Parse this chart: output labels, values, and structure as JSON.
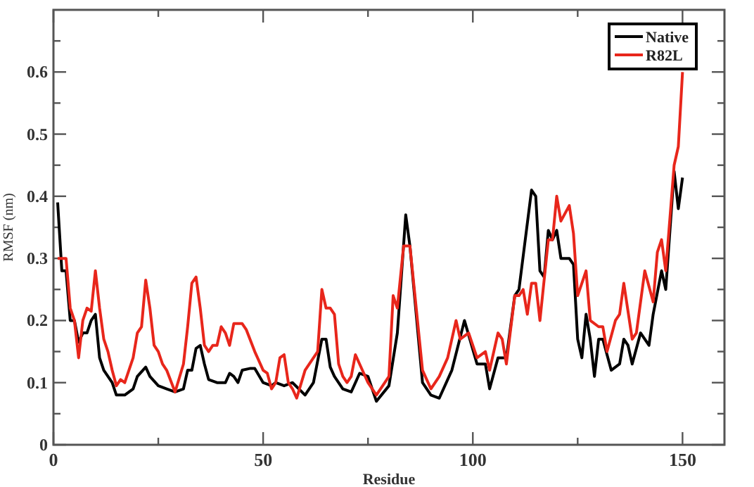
{
  "chart_data": {
    "type": "line",
    "xlabel": "Residue",
    "ylabel": "RMSF (nm)",
    "xlim": [
      0,
      160
    ],
    "ylim": [
      0,
      0.7
    ],
    "xticks": [
      0,
      {
        "value": 25,
        "label": null
      },
      50,
      {
        "value": 75,
        "label": null
      },
      100,
      {
        "value": 125,
        "label": null
      },
      150
    ],
    "yticks": [
      0,
      {
        "value": 0.05,
        "label": null
      },
      0.1,
      {
        "value": 0.15,
        "label": null
      },
      0.2,
      {
        "value": 0.25,
        "label": null
      },
      0.3,
      {
        "value": 0.35,
        "label": null
      },
      0.4,
      {
        "value": 0.45,
        "label": null
      },
      0.5,
      {
        "value": 0.55,
        "label": null
      },
      0.6,
      {
        "value": 0.65,
        "label": null
      }
    ],
    "grid": false,
    "legend": "top right",
    "marker": "none",
    "line_style": "solid",
    "series": [
      {
        "name": "Native",
        "color": "#000000",
        "x": [
          1,
          2,
          3,
          4,
          5,
          6,
          7,
          8,
          9,
          10,
          11,
          12,
          14,
          15,
          17,
          19,
          20,
          22,
          23,
          25,
          27,
          29,
          31,
          32,
          33,
          34,
          35,
          36,
          37,
          39,
          41,
          42,
          43,
          44,
          45,
          47,
          48,
          50,
          52,
          53,
          55,
          57,
          60,
          62,
          64,
          65,
          66,
          67,
          69,
          71,
          73,
          75,
          76,
          77,
          80,
          82,
          84,
          85,
          88,
          90,
          92,
          95,
          98,
          101,
          103,
          104,
          106,
          108,
          110,
          111,
          114,
          115,
          116,
          117,
          118,
          119,
          120,
          121,
          123,
          124,
          125,
          126,
          127,
          128,
          129,
          130,
          131,
          133,
          135,
          136,
          137,
          138,
          140,
          142,
          143,
          145,
          146,
          148,
          149,
          150
        ],
        "values": [
          0.39,
          0.28,
          0.28,
          0.2,
          0.2,
          0.165,
          0.18,
          0.18,
          0.2,
          0.21,
          0.14,
          0.12,
          0.1,
          0.08,
          0.08,
          0.09,
          0.11,
          0.125,
          0.11,
          0.095,
          0.09,
          0.085,
          0.09,
          0.12,
          0.12,
          0.155,
          0.16,
          0.13,
          0.105,
          0.1,
          0.1,
          0.115,
          0.11,
          0.1,
          0.12,
          0.123,
          0.123,
          0.1,
          0.095,
          0.1,
          0.095,
          0.1,
          0.08,
          0.1,
          0.17,
          0.17,
          0.125,
          0.11,
          0.09,
          0.085,
          0.115,
          0.11,
          0.09,
          0.07,
          0.095,
          0.18,
          0.37,
          0.32,
          0.1,
          0.08,
          0.075,
          0.12,
          0.2,
          0.13,
          0.13,
          0.09,
          0.14,
          0.14,
          0.24,
          0.25,
          0.41,
          0.4,
          0.28,
          0.27,
          0.345,
          0.33,
          0.345,
          0.3,
          0.3,
          0.29,
          0.17,
          0.14,
          0.21,
          0.17,
          0.11,
          0.17,
          0.17,
          0.12,
          0.13,
          0.17,
          0.16,
          0.13,
          0.18,
          0.16,
          0.21,
          0.28,
          0.25,
          0.44,
          0.38,
          0.43
        ]
      },
      {
        "name": "R82L",
        "color": "#e8261b",
        "x": [
          1,
          2,
          3,
          4,
          5,
          6,
          7,
          8,
          9,
          10,
          11,
          12,
          13,
          14,
          15,
          16,
          17,
          19,
          20,
          21,
          22,
          23,
          24,
          25,
          26,
          27,
          29,
          31,
          32,
          33,
          34,
          35,
          36,
          37,
          38,
          39,
          40,
          41,
          42,
          43,
          45,
          46,
          48,
          50,
          51,
          52,
          53,
          54,
          55,
          56,
          57,
          58,
          60,
          62,
          63,
          64,
          65,
          66,
          67,
          68,
          69,
          70,
          71,
          72,
          73,
          75,
          77,
          80,
          81,
          82,
          83.5,
          85,
          88,
          90,
          92,
          94,
          96,
          97,
          99,
          101,
          103,
          104,
          106,
          107,
          108,
          110,
          111,
          112,
          113,
          114,
          115,
          116,
          118,
          119,
          120,
          121,
          123,
          124,
          125,
          127,
          128,
          130,
          131,
          132,
          134,
          135,
          136,
          138,
          139,
          141,
          143,
          144,
          145,
          146,
          148,
          149,
          150
        ],
        "values": [
          0.3,
          0.3,
          0.3,
          0.22,
          0.2,
          0.14,
          0.2,
          0.22,
          0.215,
          0.28,
          0.22,
          0.17,
          0.15,
          0.12,
          0.095,
          0.105,
          0.1,
          0.14,
          0.18,
          0.19,
          0.265,
          0.22,
          0.16,
          0.15,
          0.13,
          0.12,
          0.085,
          0.13,
          0.19,
          0.26,
          0.27,
          0.22,
          0.16,
          0.15,
          0.16,
          0.16,
          0.19,
          0.18,
          0.16,
          0.195,
          0.195,
          0.185,
          0.15,
          0.12,
          0.115,
          0.09,
          0.1,
          0.14,
          0.145,
          0.1,
          0.09,
          0.075,
          0.12,
          0.14,
          0.15,
          0.25,
          0.22,
          0.22,
          0.21,
          0.13,
          0.11,
          0.1,
          0.11,
          0.145,
          0.13,
          0.1,
          0.08,
          0.11,
          0.24,
          0.22,
          0.32,
          0.32,
          0.12,
          0.09,
          0.11,
          0.14,
          0.2,
          0.17,
          0.18,
          0.14,
          0.15,
          0.12,
          0.18,
          0.17,
          0.13,
          0.24,
          0.24,
          0.25,
          0.21,
          0.26,
          0.26,
          0.2,
          0.33,
          0.33,
          0.4,
          0.36,
          0.385,
          0.34,
          0.24,
          0.28,
          0.2,
          0.19,
          0.19,
          0.15,
          0.2,
          0.21,
          0.26,
          0.17,
          0.18,
          0.28,
          0.23,
          0.31,
          0.33,
          0.28,
          0.45,
          0.48,
          0.6
        ]
      }
    ]
  }
}
